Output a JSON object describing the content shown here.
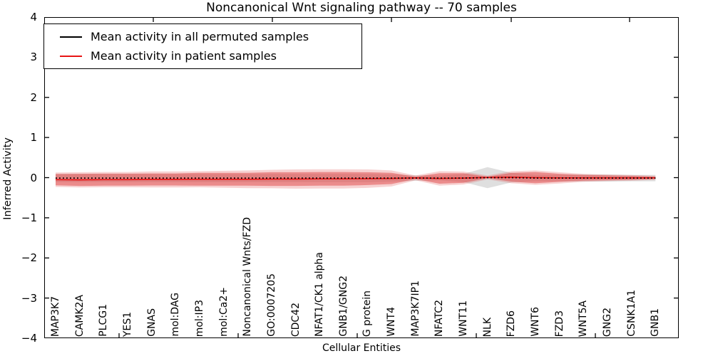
{
  "chart_data": {
    "type": "line",
    "title": "Noncanonical Wnt signaling pathway -- 70 samples",
    "xlabel": "Cellular Entities",
    "ylabel": "Inferred Activity",
    "ylim": [
      -4,
      4
    ],
    "yticks": [
      4,
      3,
      2,
      1,
      0,
      -1,
      -2,
      -3,
      -4
    ],
    "ytick_labels": [
      "4",
      "3",
      "2",
      "1",
      "0",
      "−1",
      "−2",
      "−3",
      "−4"
    ],
    "grid": false,
    "legend_position": "upper left",
    "categories": [
      "MAP3K7",
      "CAMK2A",
      "PLCG1",
      "YES1",
      "GNAS",
      "mol:DAG",
      "mol:IP3",
      "mol:Ca2+",
      "Noncanonical Wnts/FZD",
      "GO:0007205",
      "CDC42",
      "NFAT1/CK1 alpha",
      "GNB1/GNG2",
      "G protein",
      "WNT4",
      "MAP3K7IP1",
      "NFATC2",
      "WNT11",
      "NLK",
      "FZD6",
      "WNT6",
      "FZD3",
      "WNT5A",
      "GNG2",
      "CSNK1A1",
      "GNB1"
    ],
    "series": [
      {
        "id": "permuted",
        "name": "Mean activity in all permuted samples",
        "color": "#000000",
        "line_style": "dotted",
        "values": [
          -0.01,
          -0.01,
          -0.01,
          -0.01,
          -0.01,
          -0.01,
          -0.01,
          -0.01,
          -0.01,
          -0.01,
          -0.01,
          -0.01,
          -0.01,
          -0.01,
          -0.01,
          -0.01,
          -0.01,
          -0.01,
          0.0,
          0.0,
          -0.01,
          -0.01,
          -0.01,
          -0.01,
          -0.01,
          -0.01
        ]
      },
      {
        "id": "patient",
        "name": "Mean activity in patient samples",
        "color": "#e81414",
        "line_style": "solid",
        "values": [
          -0.05,
          -0.055,
          -0.05,
          -0.05,
          -0.045,
          -0.045,
          -0.04,
          -0.04,
          -0.04,
          -0.035,
          -0.035,
          -0.03,
          -0.03,
          -0.025,
          -0.02,
          -0.005,
          -0.02,
          -0.01,
          0.005,
          0.01,
          0.0,
          -0.005,
          -0.005,
          -0.005,
          -0.005,
          -0.005
        ]
      }
    ],
    "bands": [
      {
        "name": "permuted-spread",
        "center": "permuted",
        "color": "#9a9a9a",
        "opacity": 0.32,
        "half_widths": [
          0.1,
          0.1,
          0.1,
          0.1,
          0.1,
          0.1,
          0.1,
          0.1,
          0.1,
          0.1,
          0.1,
          0.1,
          0.1,
          0.1,
          0.09,
          0.07,
          0.06,
          0.1,
          0.26,
          0.12,
          0.08,
          0.08,
          0.09,
          0.09,
          0.08,
          0.08
        ]
      },
      {
        "name": "patient-spread-outer",
        "center": "patient",
        "color": "#e05050",
        "opacity": 0.25,
        "half_widths": [
          0.18,
          0.19,
          0.19,
          0.19,
          0.2,
          0.2,
          0.2,
          0.21,
          0.22,
          0.23,
          0.24,
          0.24,
          0.24,
          0.23,
          0.2,
          0.06,
          0.18,
          0.16,
          0.05,
          0.15,
          0.18,
          0.14,
          0.1,
          0.08,
          0.07,
          0.05
        ]
      },
      {
        "name": "patient-spread-inner",
        "center": "patient",
        "color": "#e04545",
        "opacity": 0.5,
        "half_widths": [
          0.14,
          0.15,
          0.15,
          0.15,
          0.15,
          0.15,
          0.16,
          0.16,
          0.16,
          0.17,
          0.17,
          0.17,
          0.17,
          0.16,
          0.14,
          0.03,
          0.13,
          0.12,
          0.02,
          0.11,
          0.14,
          0.1,
          0.07,
          0.06,
          0.05,
          0.03
        ]
      }
    ]
  }
}
